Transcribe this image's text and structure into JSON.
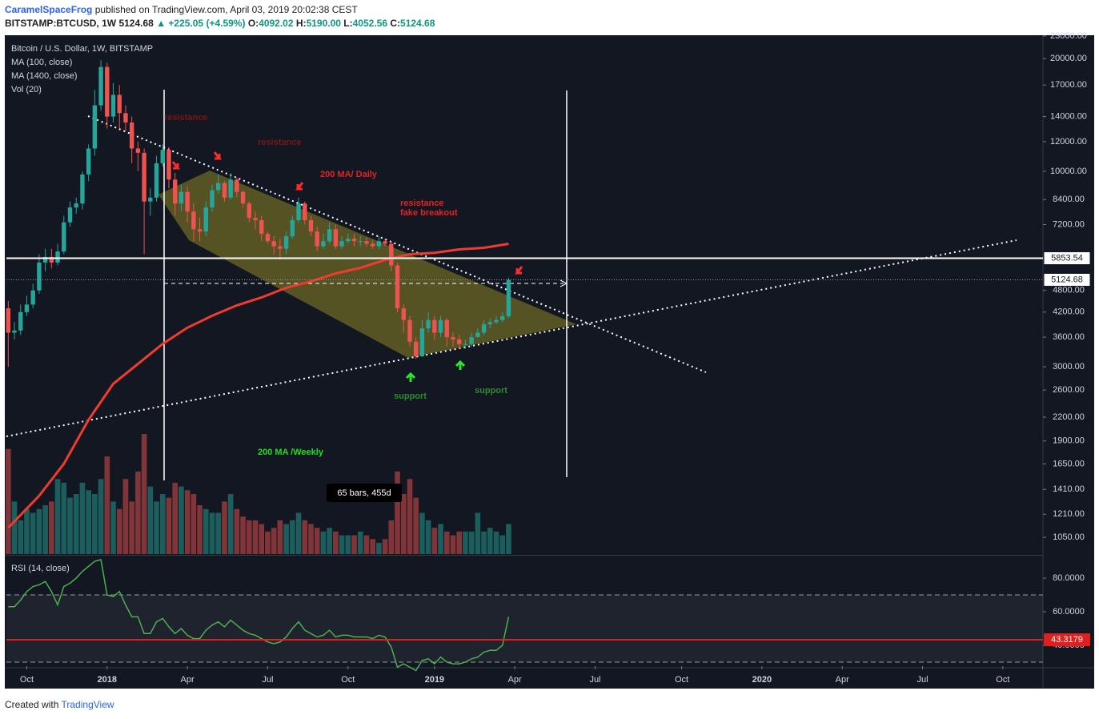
{
  "header": {
    "author": "CaramelSpaceFrog",
    "published": "published on TradingView.com, April 03, 2019 20:02:38 CEST",
    "symbol": "BITSTAMP:BTCUSD, 1W",
    "price": "5124.68",
    "change": "▲ +225.05 (+4.59%)",
    "ohlc": [
      {
        "key": "O:",
        "value": "4092.02"
      },
      {
        "key": "H:",
        "value": "5190.00"
      },
      {
        "key": "L:",
        "value": "4052.56"
      },
      {
        "key": "C:",
        "value": "5124.68"
      }
    ]
  },
  "footer": {
    "text": "Created with",
    "brand": "TradingView"
  },
  "chart_data": [
    {
      "type": "candlestick",
      "title": "Bitcoin / U.S. Dollar, 1W, BITSTAMP",
      "log_scale": true,
      "up_color": "#26a69a",
      "down_color": "#ef5350",
      "open": [
        4300,
        3700,
        3750,
        4200,
        4400,
        4800,
        5700,
        5900,
        5700,
        6100,
        7300,
        8000,
        8200,
        9800,
        11500,
        15000,
        19000,
        14000,
        16000,
        14300,
        13500,
        11500,
        11200,
        8300,
        8500,
        10500,
        11400,
        9500,
        8200,
        8800,
        7800,
        7000,
        6900,
        8000,
        8900,
        9300,
        8500,
        9500,
        8800,
        8200,
        7500,
        7400,
        6800,
        6500,
        6300,
        6200,
        6700,
        7400,
        8200,
        7400,
        6900,
        6300,
        6500,
        7000,
        6300,
        6500,
        6600,
        6500,
        6500,
        6400,
        6300,
        6500,
        6400,
        5600,
        4300,
        4000,
        3500,
        3200,
        3800,
        4000,
        3700,
        4000,
        3600,
        3550,
        3450,
        3450,
        3600,
        3700,
        3900,
        3950,
        4000,
        4092.02
      ],
      "high": [
        4500,
        3950,
        4400,
        4650,
        5000,
        6000,
        6200,
        6200,
        6400,
        7600,
        8300,
        8500,
        10000,
        11800,
        16500,
        19800,
        19500,
        17200,
        17000,
        15000,
        14000,
        12000,
        11500,
        9000,
        11000,
        11800,
        11600,
        9900,
        9200,
        9100,
        8200,
        7500,
        8300,
        9200,
        9800,
        9400,
        9900,
        9600,
        8900,
        8300,
        7800,
        7600,
        6900,
        6700,
        6600,
        6900,
        7600,
        8500,
        8300,
        7600,
        7100,
        6800,
        7300,
        7200,
        6700,
        6800,
        6800,
        6700,
        6650,
        6550,
        6700,
        6600,
        6500,
        5700,
        4400,
        4100,
        3600,
        4000,
        4200,
        4100,
        4100,
        4050,
        3700,
        3650,
        3550,
        3700,
        3800,
        4000,
        4050,
        4100,
        4200,
        5190
      ],
      "low": [
        3000,
        3550,
        3650,
        4100,
        4300,
        4700,
        5400,
        5500,
        5600,
        6000,
        7100,
        7700,
        7900,
        9400,
        11000,
        14500,
        13000,
        13500,
        13000,
        12800,
        10500,
        10000,
        6000,
        7600,
        8300,
        10300,
        9000,
        7600,
        7800,
        7300,
        6500,
        6500,
        6700,
        7800,
        8700,
        8300,
        8400,
        8500,
        8000,
        7300,
        7000,
        6500,
        6400,
        6000,
        5800,
        6000,
        6600,
        7300,
        7200,
        6700,
        6100,
        6200,
        6400,
        6200,
        6200,
        6400,
        6300,
        6300,
        6300,
        6200,
        6200,
        6300,
        5400,
        4200,
        3700,
        3400,
        3150,
        3200,
        3700,
        3550,
        3600,
        3400,
        3400,
        3350,
        3350,
        3400,
        3600,
        3650,
        3800,
        3900,
        3950,
        4052.56
      ],
      "close": [
        3700,
        3750,
        4200,
        4400,
        4800,
        5700,
        5900,
        5700,
        6100,
        7300,
        8000,
        8200,
        9800,
        11500,
        15000,
        19000,
        14000,
        16000,
        14300,
        13500,
        11500,
        11200,
        8300,
        8500,
        10500,
        11400,
        9500,
        8200,
        8800,
        7800,
        7000,
        6900,
        8000,
        8900,
        9300,
        8500,
        9500,
        8800,
        8200,
        7500,
        7400,
        6800,
        6500,
        6300,
        6200,
        6700,
        7400,
        8200,
        7400,
        6900,
        6300,
        6500,
        7000,
        6300,
        6500,
        6600,
        6500,
        6500,
        6400,
        6300,
        6500,
        6400,
        5600,
        4300,
        4000,
        3500,
        3200,
        3800,
        4000,
        3700,
        4000,
        3600,
        3550,
        3450,
        3450,
        3600,
        3700,
        3900,
        3950,
        4000,
        4100,
        5124.68
      ],
      "overlays": [
        {
          "name": "MA (100, close)",
          "color": "#f23b2f",
          "x": [
            0,
            5,
            9,
            13,
            17,
            21,
            25,
            29,
            33,
            37,
            41,
            45,
            49,
            53,
            57,
            61,
            65,
            69,
            73,
            77,
            81
          ],
          "values": [
            1113,
            1356,
            1651,
            2165,
            2702,
            3055,
            3455,
            3816,
            4106,
            4378,
            4598,
            4880,
            5074,
            5330,
            5515,
            5794,
            5998,
            6050,
            6178,
            6240,
            6395
          ]
        },
        {
          "name": "MA (1400, close)"
        }
      ],
      "volume": {
        "name": "Vol (20)",
        "values": [
          140000,
          70000,
          45000,
          60000,
          55000,
          60000,
          65000,
          70000,
          100000,
          95000,
          75000,
          80000,
          95000,
          85000,
          80000,
          100000,
          130000,
          70000,
          60000,
          100000,
          70000,
          110000,
          160000,
          90000,
          70000,
          80000,
          75000,
          95000,
          90000,
          85000,
          80000,
          65000,
          60000,
          55000,
          55000,
          70000,
          80000,
          60000,
          50000,
          45000,
          45000,
          40000,
          30000,
          35000,
          45000,
          40000,
          45000,
          55000,
          45000,
          40000,
          35000,
          30000,
          35000,
          30000,
          25000,
          25000,
          25000,
          30000,
          25000,
          20000,
          15000,
          20000,
          45000,
          110000,
          80000,
          100000,
          75000,
          55000,
          45000,
          35000,
          40000,
          30000,
          25000,
          30000,
          30000,
          30000,
          55000,
          30000,
          35000,
          30000,
          25000,
          40000
        ]
      },
      "xlim": [
        -0.3,
        167.5
      ],
      "xticks": [
        {
          "value": 3,
          "label": "Oct"
        },
        {
          "value": 16,
          "label": "2018"
        },
        {
          "value": 29,
          "label": "Apr"
        },
        {
          "value": 42,
          "label": "Jul"
        },
        {
          "value": 55,
          "label": "Oct"
        },
        {
          "value": 69,
          "label": "2019"
        },
        {
          "value": 82,
          "label": "Apr"
        },
        {
          "value": 95,
          "label": "Jul"
        },
        {
          "value": 109,
          "label": "Oct"
        },
        {
          "value": 122,
          "label": "2020"
        },
        {
          "value": 135,
          "label": "Apr"
        },
        {
          "value": 148,
          "label": "Jul"
        },
        {
          "value": 161,
          "label": "Oct"
        }
      ],
      "ylim": [
        947,
        23100
      ],
      "yticks": [
        {
          "value": 23000,
          "label": "23000.00"
        },
        {
          "value": 20000,
          "label": "20000.00"
        },
        {
          "value": 17000,
          "label": "17000.00"
        },
        {
          "value": 14000,
          "label": "14000.00"
        },
        {
          "value": 12000,
          "label": "12000.00"
        },
        {
          "value": 10000,
          "label": "10000.00"
        },
        {
          "value": 8400,
          "label": "8400.00"
        },
        {
          "value": 7200,
          "label": "7200.00"
        },
        {
          "value": 4800,
          "label": "4800.00"
        },
        {
          "value": 4200,
          "label": "4200.00"
        },
        {
          "value": 3600,
          "label": "3600.00"
        },
        {
          "value": 3000,
          "label": "3000.00"
        },
        {
          "value": 2600,
          "label": "2600.00"
        },
        {
          "value": 2200,
          "label": "2200.00"
        },
        {
          "value": 1900,
          "label": "1900.00"
        },
        {
          "value": 1650,
          "label": "1650.00"
        },
        {
          "value": 1410,
          "label": "1410.00"
        },
        {
          "value": 1210,
          "label": "1210.00"
        },
        {
          "value": 1050,
          "label": "1050.00"
        }
      ],
      "price_lines": [
        {
          "value": 5853.54,
          "color": "#ffffff",
          "style": "solid"
        },
        {
          "value": 5124.68,
          "color": "#9598a1",
          "style": "dotted"
        }
      ],
      "annotations": [
        {
          "text": "resistance",
          "color": "#7a1616"
        },
        {
          "text": "resistance",
          "color": "#7a1616"
        },
        {
          "text": "200 MA/ Daily",
          "color": "#e52222"
        },
        {
          "text": "resistance",
          "color": "#e52222"
        },
        {
          "text": "fake breakout",
          "color": "#e52222"
        },
        {
          "text": "support",
          "color": "#2e8b2e"
        },
        {
          "text": "support",
          "color": "#2e8b2e"
        },
        {
          "text": "200 MA /Weekly",
          "color": "#22dd22"
        }
      ],
      "measure": "65 bars, 455d"
    },
    {
      "type": "line",
      "title": "RSI (14, close)",
      "color": "#4caf50",
      "values": [
        63,
        63,
        67,
        72,
        75,
        76,
        78,
        72,
        64,
        75,
        77,
        80,
        84,
        87,
        90,
        91,
        70,
        69,
        72,
        64,
        57,
        57,
        47,
        47,
        54,
        56,
        51,
        47,
        50,
        46,
        44,
        44,
        49,
        52,
        54,
        51,
        55,
        52,
        49,
        47,
        46,
        44,
        42,
        41,
        42,
        45,
        50,
        54,
        49,
        47,
        45,
        46,
        49,
        45,
        46,
        46,
        45,
        45,
        45,
        44,
        46,
        45,
        39,
        27,
        29,
        27,
        25,
        31,
        32,
        29,
        33,
        30,
        29,
        29,
        30,
        32,
        33,
        36,
        37,
        37,
        40,
        57
      ],
      "ylim": [
        27.6,
        92.9
      ],
      "yticks": [
        {
          "value": 40,
          "label": "40.0000"
        },
        {
          "value": 60,
          "label": "60.0000"
        },
        {
          "value": 80,
          "label": "80.0000"
        }
      ],
      "bands": [
        30,
        70
      ],
      "level": {
        "value": 43.3179,
        "color": "#e01f1f"
      }
    }
  ]
}
